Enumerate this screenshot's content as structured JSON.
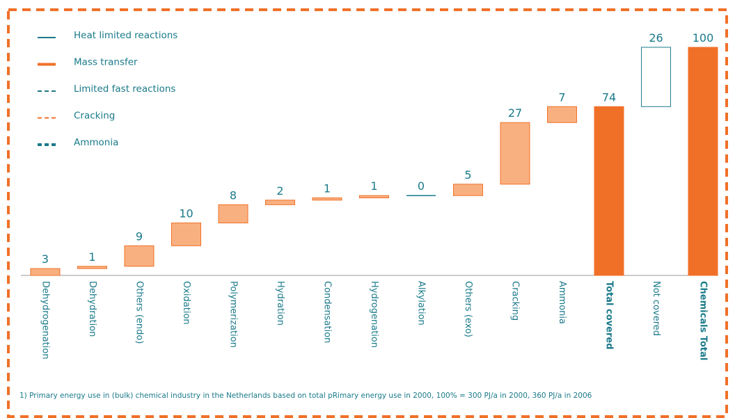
{
  "chart_data": {
    "type": "waterfall",
    "categories": [
      "Dehydrogenation",
      "Dehydration",
      "Others (endo)",
      "Oxidation",
      "Polymerization",
      "Hydration",
      "Condensation",
      "Hydrogenation",
      "Alkylation",
      "Others (exo)",
      "Cracking",
      "Ammonia",
      "Total covered",
      "Not covered",
      "Chemicals Total"
    ],
    "values": [
      3,
      1,
      9,
      10,
      8,
      2,
      1,
      1,
      0,
      5,
      27,
      7,
      74,
      26,
      100
    ],
    "kinds": [
      "increment",
      "increment",
      "increment",
      "increment",
      "increment",
      "increment",
      "increment",
      "increment",
      "increment",
      "increment",
      "increment",
      "increment",
      "total",
      "increment",
      "total"
    ],
    "colors": [
      "#f9b080",
      "#f9b080",
      "#f9b080",
      "#f9b080",
      "#f9b080",
      "#f9b080",
      "#f9b080",
      "#f9b080",
      "#f9b080",
      "#f9b080",
      "#f9b080",
      "#f9b080",
      "#f07028",
      "#ffffff",
      "#f07028"
    ],
    "edge_colors": [
      "#f07028",
      "#f07028",
      "#f07028",
      "#f07028",
      "#f07028",
      "#f07028",
      "#f07028",
      "#f07028",
      "#1a7a8a",
      "#f07028",
      "#f07028",
      "#f07028",
      "#f07028",
      "#1a7a8a",
      "#f07028"
    ],
    "ylim": [
      0,
      100
    ],
    "legend": [
      {
        "name": "Heat limited reactions",
        "color": "#1a7a8a",
        "style": "solid",
        "weight": "thin"
      },
      {
        "name": "Mass transfer",
        "color": "#f07028",
        "style": "solid",
        "weight": "thick"
      },
      {
        "name": "Limited fast reactions",
        "color": "#1a7a8a",
        "style": "dashed",
        "weight": "thin"
      },
      {
        "name": "Cracking",
        "color": "#f07028",
        "style": "dashed",
        "weight": "thin"
      },
      {
        "name": "Ammonia",
        "color": "#1a7a8a",
        "style": "dashed",
        "weight": "thick"
      }
    ],
    "footnote": "1) Primary energy use in (bulk) chemical industry in the Netherlands based on total pRimary energy use in 2000, 100% = 300 PJ/a in 2000, 360 PJ/a in 2006"
  }
}
